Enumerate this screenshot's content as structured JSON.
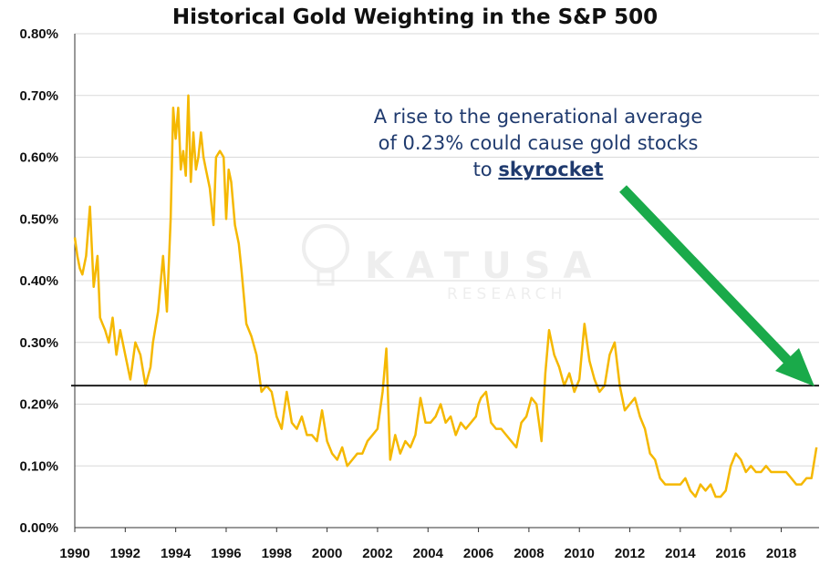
{
  "chart_data": {
    "type": "line",
    "title": "Historical Gold Weighting in the S&P 500",
    "xlabel": "",
    "ylabel": "",
    "xlim": [
      1990,
      2019.5
    ],
    "ylim": [
      0,
      0.8
    ],
    "x_ticks": [
      "1990",
      "1992",
      "1994",
      "1996",
      "1998",
      "2000",
      "2002",
      "2004",
      "2006",
      "2008",
      "2010",
      "2012",
      "2014",
      "2016",
      "2018"
    ],
    "y_ticks": [
      "0.00%",
      "0.10%",
      "0.20%",
      "0.30%",
      "0.40%",
      "0.50%",
      "0.60%",
      "0.70%",
      "0.80%"
    ],
    "grid": "horizontal",
    "series": [
      {
        "color": "#f5b800",
        "x": [
          1990.0,
          1990.1,
          1990.2,
          1990.3,
          1990.45,
          1990.6,
          1990.75,
          1990.9,
          1991.0,
          1991.1,
          1991.2,
          1991.35,
          1991.5,
          1991.65,
          1991.8,
          1992.0,
          1992.2,
          1992.4,
          1992.6,
          1992.8,
          1993.0,
          1993.1,
          1993.3,
          1993.5,
          1993.65,
          1993.8,
          1993.9,
          1994.0,
          1994.1,
          1994.2,
          1994.3,
          1994.4,
          1994.5,
          1994.6,
          1994.7,
          1994.8,
          1994.9,
          1995.0,
          1995.1,
          1995.2,
          1995.35,
          1995.5,
          1995.6,
          1995.75,
          1995.9,
          1996.0,
          1996.1,
          1996.2,
          1996.35,
          1996.5,
          1996.6,
          1996.8,
          1997.0,
          1997.2,
          1997.4,
          1997.6,
          1997.8,
          1998.0,
          1998.2,
          1998.4,
          1998.6,
          1998.8,
          1999.0,
          1999.2,
          1999.4,
          1999.6,
          1999.8,
          2000.0,
          2000.2,
          2000.4,
          2000.6,
          2000.8,
          2001.0,
          2001.2,
          2001.4,
          2001.6,
          2001.8,
          2002.0,
          2002.2,
          2002.35,
          2002.5,
          2002.7,
          2002.9,
          2003.1,
          2003.3,
          2003.5,
          2003.7,
          2003.9,
          2004.1,
          2004.3,
          2004.5,
          2004.7,
          2004.9,
          2005.1,
          2005.3,
          2005.5,
          2005.7,
          2005.9,
          2006.0,
          2006.1,
          2006.3,
          2006.5,
          2006.7,
          2006.9,
          2007.1,
          2007.3,
          2007.5,
          2007.7,
          2007.9,
          2008.1,
          2008.3,
          2008.5,
          2008.65,
          2008.8,
          2009.0,
          2009.2,
          2009.4,
          2009.6,
          2009.8,
          2010.0,
          2010.2,
          2010.4,
          2010.6,
          2010.8,
          2011.0,
          2011.2,
          2011.4,
          2011.6,
          2011.8,
          2012.0,
          2012.2,
          2012.4,
          2012.6,
          2012.8,
          2013.0,
          2013.2,
          2013.4,
          2013.6,
          2013.8,
          2014.0,
          2014.2,
          2014.4,
          2014.6,
          2014.8,
          2015.0,
          2015.2,
          2015.4,
          2015.6,
          2015.8,
          2016.0,
          2016.2,
          2016.4,
          2016.6,
          2016.8,
          2017.0,
          2017.2,
          2017.4,
          2017.6,
          2017.8,
          2018.0,
          2018.2,
          2018.4,
          2018.6,
          2018.8,
          2019.0,
          2019.2,
          2019.4
        ],
        "y": [
          0.47,
          0.44,
          0.42,
          0.41,
          0.44,
          0.52,
          0.39,
          0.44,
          0.34,
          0.33,
          0.32,
          0.3,
          0.34,
          0.28,
          0.32,
          0.28,
          0.24,
          0.3,
          0.28,
          0.23,
          0.26,
          0.3,
          0.35,
          0.44,
          0.35,
          0.5,
          0.68,
          0.63,
          0.68,
          0.58,
          0.61,
          0.57,
          0.7,
          0.56,
          0.64,
          0.58,
          0.6,
          0.64,
          0.6,
          0.58,
          0.55,
          0.49,
          0.6,
          0.61,
          0.6,
          0.5,
          0.58,
          0.56,
          0.49,
          0.46,
          0.42,
          0.33,
          0.31,
          0.28,
          0.22,
          0.23,
          0.22,
          0.18,
          0.16,
          0.22,
          0.17,
          0.16,
          0.18,
          0.15,
          0.15,
          0.14,
          0.19,
          0.14,
          0.12,
          0.11,
          0.13,
          0.1,
          0.11,
          0.12,
          0.12,
          0.14,
          0.15,
          0.16,
          0.22,
          0.29,
          0.11,
          0.15,
          0.12,
          0.14,
          0.13,
          0.15,
          0.21,
          0.17,
          0.17,
          0.18,
          0.2,
          0.17,
          0.18,
          0.15,
          0.17,
          0.16,
          0.17,
          0.18,
          0.2,
          0.21,
          0.22,
          0.17,
          0.16,
          0.16,
          0.15,
          0.14,
          0.13,
          0.17,
          0.18,
          0.21,
          0.2,
          0.14,
          0.25,
          0.32,
          0.28,
          0.26,
          0.23,
          0.25,
          0.22,
          0.24,
          0.33,
          0.27,
          0.24,
          0.22,
          0.23,
          0.28,
          0.3,
          0.23,
          0.19,
          0.2,
          0.21,
          0.18,
          0.16,
          0.12,
          0.11,
          0.08,
          0.07,
          0.07,
          0.07,
          0.07,
          0.08,
          0.06,
          0.05,
          0.07,
          0.06,
          0.07,
          0.05,
          0.05,
          0.06,
          0.1,
          0.12,
          0.11,
          0.09,
          0.1,
          0.09,
          0.09,
          0.1,
          0.09,
          0.09,
          0.09,
          0.09,
          0.08,
          0.07,
          0.07,
          0.08,
          0.08,
          0.13
        ]
      }
    ],
    "reference_line": {
      "y": 0.23,
      "color": "#111111"
    },
    "annotation": {
      "line1": "A rise to the generational average",
      "line2": "of 0.23% could cause gold stocks",
      "line3_prefix": "to ",
      "line3_emphasis": "skyrocket"
    },
    "arrow_color": "#1aaa4a",
    "watermark": {
      "main": "KATUSA",
      "sub": "RESEARCH"
    }
  }
}
